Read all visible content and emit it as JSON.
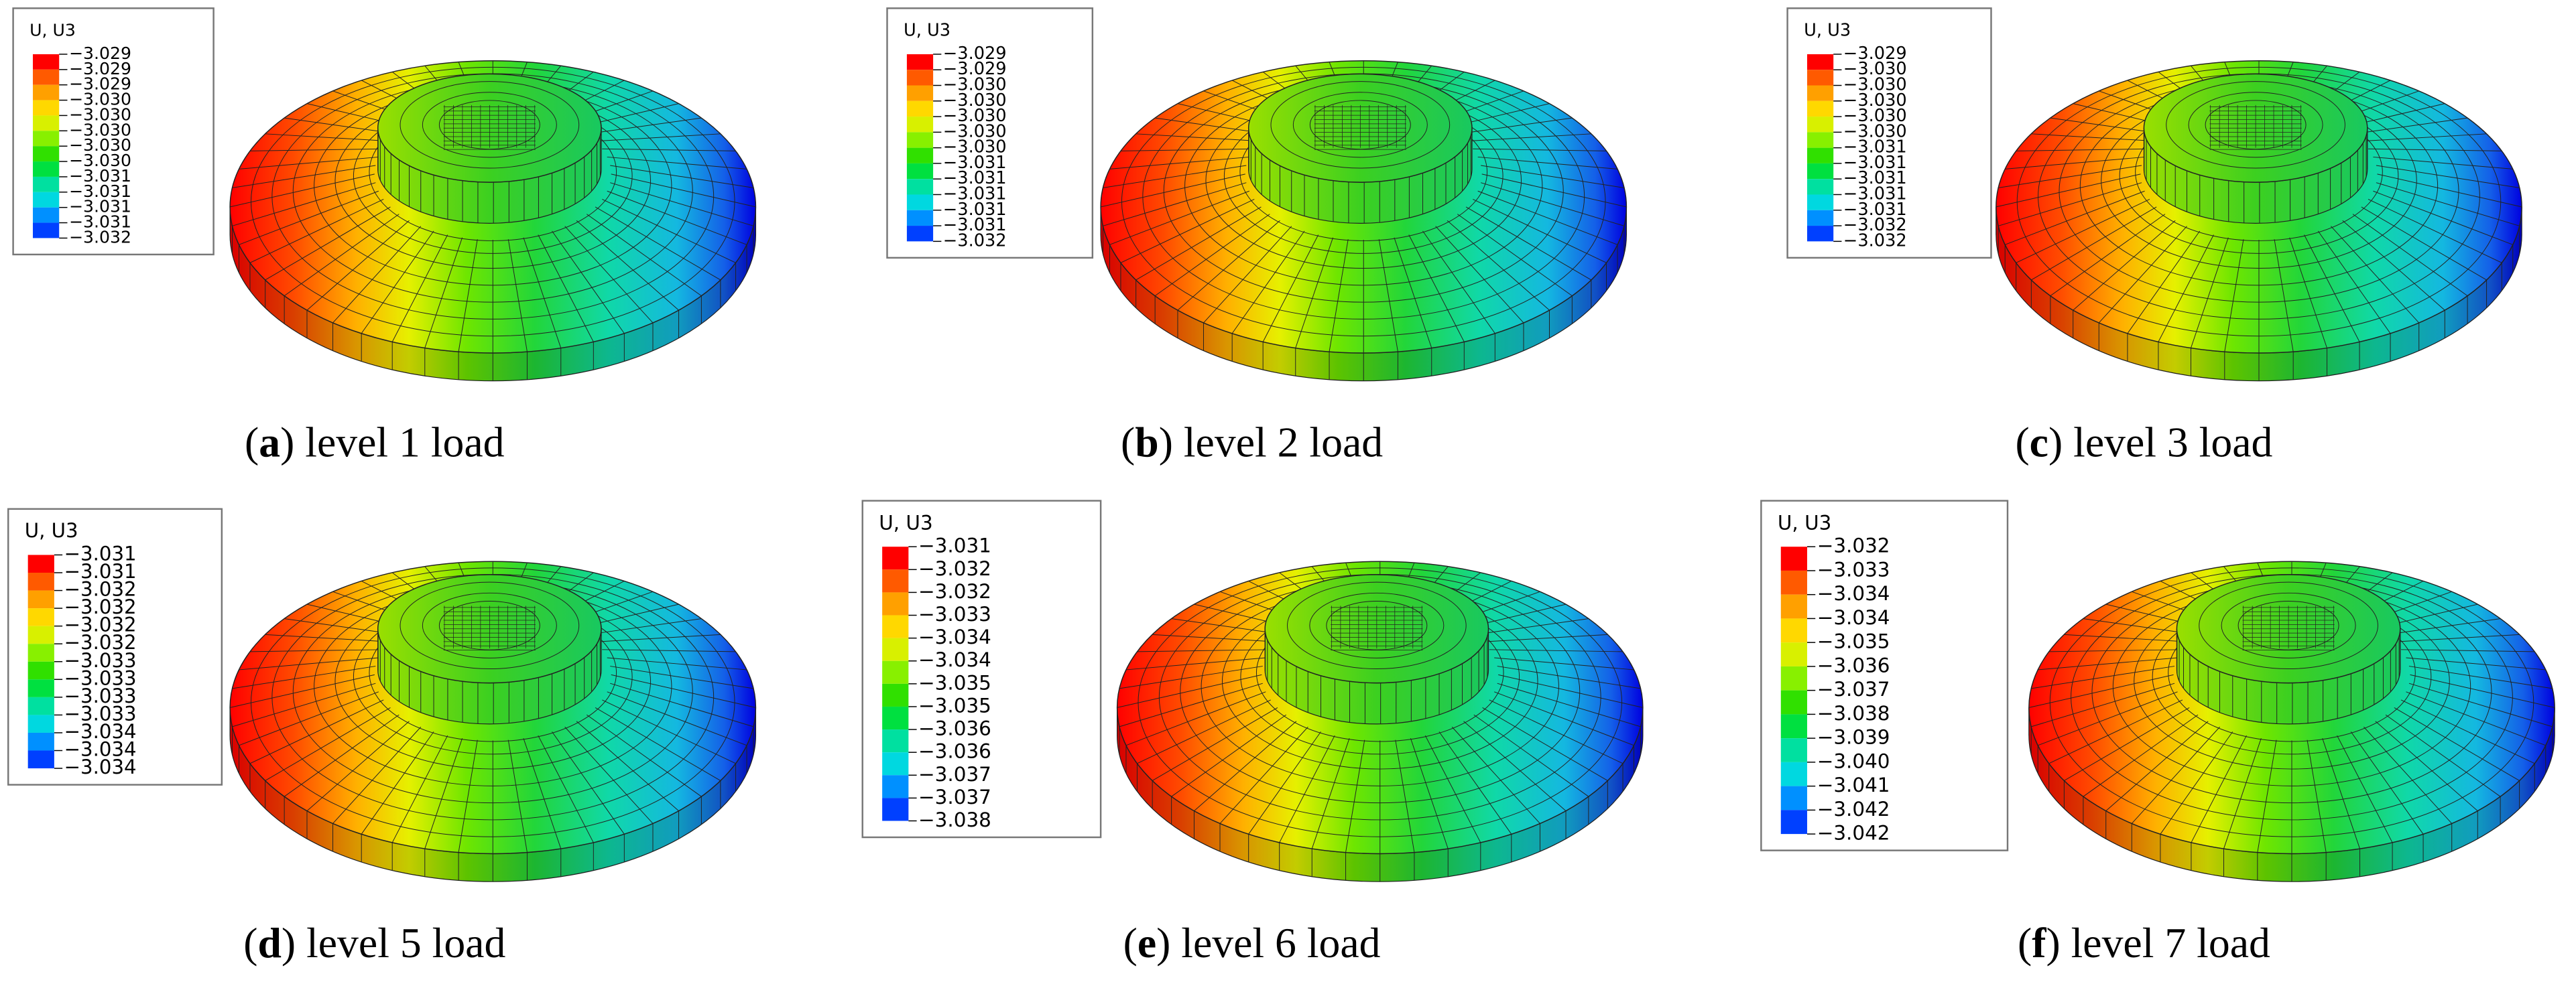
{
  "panels": [
    {
      "legend": {
        "title": "U, U3",
        "values": [
          "−3.029",
          "−3.029",
          "−3.029",
          "−3.030",
          "−3.030",
          "−3.030",
          "−3.030",
          "−3.030",
          "−3.031",
          "−3.031",
          "−3.031",
          "−3.031",
          "−3.032"
        ]
      },
      "caption": {
        "open": "(",
        "label": "a",
        "text": ") level 1 load"
      }
    },
    {
      "legend": {
        "title": "U, U3",
        "values": [
          "−3.029",
          "−3.029",
          "−3.030",
          "−3.030",
          "−3.030",
          "−3.030",
          "−3.030",
          "−3.031",
          "−3.031",
          "−3.031",
          "−3.031",
          "−3.031",
          "−3.032"
        ]
      },
      "caption": {
        "open": "(",
        "label": "b",
        "text": ") level 2 load"
      }
    },
    {
      "legend": {
        "title": "U, U3",
        "values": [
          "−3.029",
          "−3.030",
          "−3.030",
          "−3.030",
          "−3.030",
          "−3.030",
          "−3.031",
          "−3.031",
          "−3.031",
          "−3.031",
          "−3.031",
          "−3.032",
          "−3.032"
        ]
      },
      "caption": {
        "open": "(",
        "label": "c",
        "text": ") level 3 load"
      }
    },
    {
      "legend": {
        "title": "U, U3",
        "values": [
          "−3.031",
          "−3.031",
          "−3.032",
          "−3.032",
          "−3.032",
          "−3.032",
          "−3.033",
          "−3.033",
          "−3.033",
          "−3.033",
          "−3.034",
          "−3.034",
          "−3.034"
        ]
      },
      "caption": {
        "open": "(",
        "label": "d",
        "text": ") level 5 load"
      }
    },
    {
      "legend": {
        "title": "U, U3",
        "values": [
          "−3.031",
          "−3.032",
          "−3.032",
          "−3.033",
          "−3.034",
          "−3.034",
          "−3.035",
          "−3.035",
          "−3.036",
          "−3.036",
          "−3.037",
          "−3.037",
          "−3.038"
        ]
      },
      "caption": {
        "open": "(",
        "label": "e",
        "text": ") level 6 load"
      }
    },
    {
      "legend": {
        "title": "U, U3",
        "values": [
          "−3.032",
          "−3.033",
          "−3.034",
          "−3.034",
          "−3.035",
          "−3.036",
          "−3.037",
          "−3.038",
          "−3.039",
          "−3.040",
          "−3.041",
          "−3.042",
          "−3.042"
        ]
      },
      "caption": {
        "open": "(",
        "label": "f",
        "text": ") level 7 load"
      }
    }
  ]
}
